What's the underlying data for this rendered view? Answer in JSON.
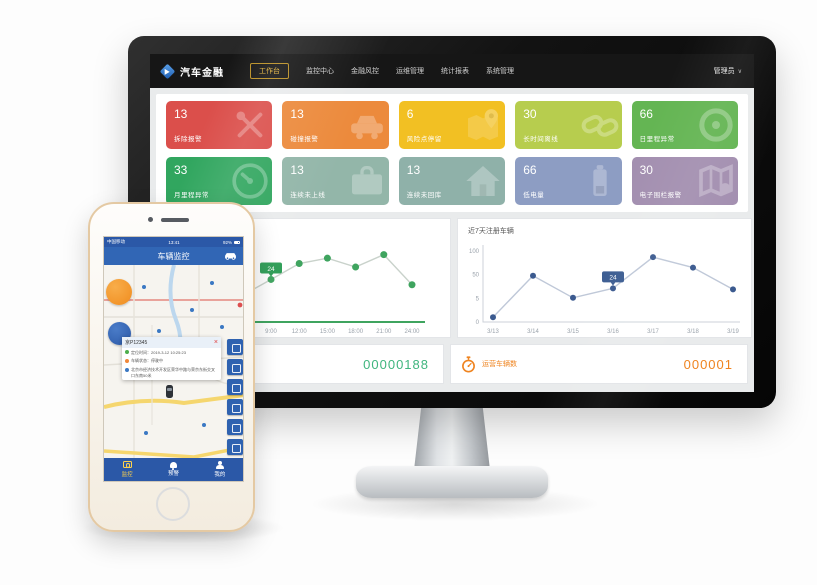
{
  "monitor": {
    "navbar": {
      "brand": "汽车金融",
      "items": [
        {
          "label": "工作台",
          "active": true
        },
        {
          "label": "监控中心",
          "active": false
        },
        {
          "label": "金融风控",
          "active": false
        },
        {
          "label": "运维管理",
          "active": false
        },
        {
          "label": "统计报表",
          "active": false
        },
        {
          "label": "系统管理",
          "active": false
        }
      ],
      "user": "管理员",
      "caret": "∨",
      "accent": "#e8b73c"
    },
    "tiles": [
      {
        "value": "13",
        "label": "拆除报警",
        "color": "#db4f4b",
        "icon": "tools-icon"
      },
      {
        "value": "13",
        "label": "碰撞报警",
        "color": "#ec8a3c",
        "icon": "car-crash-icon"
      },
      {
        "value": "6",
        "label": "风险点停留",
        "color": "#f2c023",
        "icon": "map-pin-icon"
      },
      {
        "value": "30",
        "label": "长时间离线",
        "color": "#b7cd4e",
        "icon": "chain-icon"
      },
      {
        "value": "66",
        "label": "日里程异常",
        "color": "#64b553",
        "icon": "tire-icon"
      },
      {
        "value": "33",
        "label": "月里程异常",
        "color": "#31a65f",
        "icon": "gauge-icon"
      },
      {
        "value": "13",
        "label": "连续未上线",
        "color": "#93b6a9",
        "icon": "briefcase-icon"
      },
      {
        "value": "13",
        "label": "连续未回库",
        "color": "#8fb1a9",
        "icon": "house-icon"
      },
      {
        "value": "66",
        "label": "低电量",
        "color": "#8d9dc3",
        "icon": "battery-icon"
      },
      {
        "value": "30",
        "label": "电子围栏报警",
        "color": "#a38fb0",
        "icon": "map-icon"
      }
    ],
    "counters": {
      "left": {
        "value": "00000188",
        "color": "#3fb57e"
      },
      "right": {
        "label": "运营车辆数",
        "value": "000001",
        "color": "#ef8420",
        "icon": "stopwatch-icon"
      }
    }
  },
  "chart_data": [
    {
      "type": "line",
      "title": "",
      "x": [
        "9:00",
        "12:00",
        "15:00",
        "18:00",
        "21:00",
        "24:00"
      ],
      "values": [
        24,
        33,
        36,
        31,
        38,
        21
      ],
      "ylim": [
        0,
        44
      ],
      "lead_in": 18,
      "baseline": true,
      "grid": false,
      "color": "#3fa45f",
      "line_color": "#c9d2cb",
      "tooltip": {
        "index": 0,
        "label": "24",
        "color": "#2f9e57"
      },
      "layout": {
        "x0": 114,
        "dx": 28.2,
        "base": 103,
        "top": 25,
        "leadx": 95,
        "bx0": 95,
        "bx1": 268,
        "dot_r": 3.5
      }
    },
    {
      "type": "line",
      "title": "近7天注册车辆",
      "x": [
        "3/13",
        "3/14",
        "3/15",
        "3/16",
        "3/17",
        "3/18",
        "3/19"
      ],
      "values": [
        1,
        48,
        6,
        24,
        87,
        65,
        22
      ],
      "y_ticks": [
        0,
        5,
        50,
        100
      ],
      "grid": false,
      "color": "#3b5a8f",
      "line_color": "#bfc8d8",
      "tooltip": {
        "index": 3,
        "label": "24",
        "color": "#3c5d92"
      },
      "layout": {
        "x0": 35,
        "dx": 40,
        "base": 103,
        "top": 32,
        "axis_x": 25,
        "x1": 282,
        "dot_r": 3
      }
    }
  ],
  "phone": {
    "status": {
      "carrier": "中国移动",
      "time": "13:41",
      "battery": "92%"
    },
    "navbar": {
      "title": "车辆监控"
    },
    "popup": {
      "plate": "京P12345",
      "close": "×",
      "rows": [
        {
          "icon": "clock-icon",
          "color": "#4cae4c",
          "text": "定位时间：2019-3-12 10:25:23"
        },
        {
          "icon": "status-icon",
          "color": "#f0883a",
          "text": "车辆状态：停驶中"
        },
        {
          "icon": "pin-icon",
          "color": "#3a78c3",
          "text": "北京市经济技术开发区荣华中路与荣京东街交叉口东南50米"
        }
      ]
    },
    "map_tools": [
      "track-icon",
      "replay-icon",
      "command-icon",
      "fence-icon",
      "message-icon",
      "more-icon"
    ],
    "tabs": [
      {
        "label": "监控",
        "icon": "camera-icon",
        "active": true
      },
      {
        "label": "预警",
        "icon": "bell-icon",
        "active": false
      },
      {
        "label": "我的",
        "icon": "user-icon",
        "active": false
      }
    ]
  }
}
